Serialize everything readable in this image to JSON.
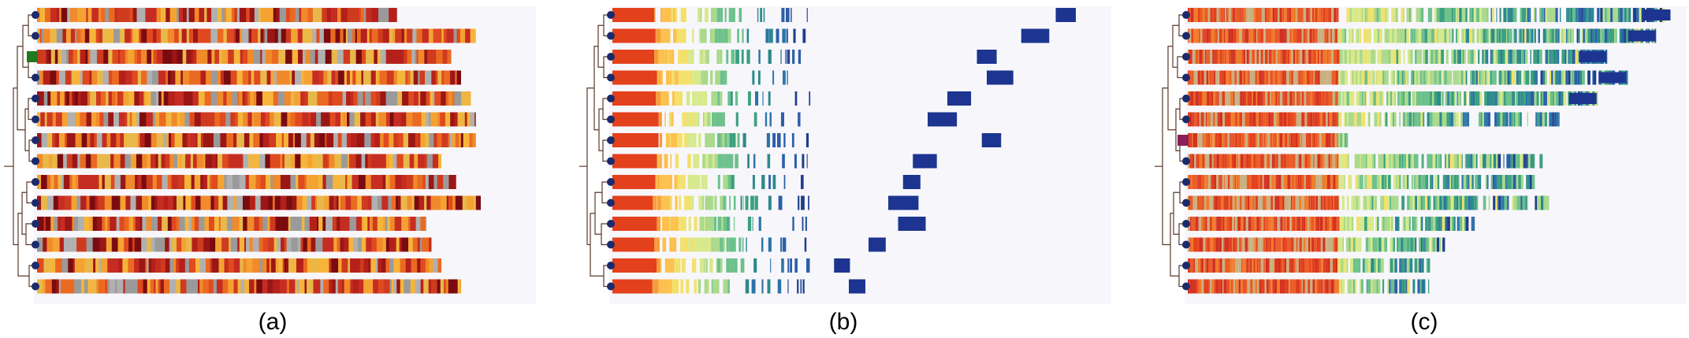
{
  "panels": [
    {
      "caption": "(a)",
      "highlight_color": "#1f7a1f",
      "highlight_row": 2,
      "row_lengths": [
        0.73,
        0.89,
        0.84,
        0.86,
        0.88,
        0.89,
        0.89,
        0.82,
        0.85,
        0.9,
        0.79,
        0.8,
        0.82,
        0.86
      ]
    },
    {
      "caption": "(b)",
      "highlight_color": "",
      "highlight_row": -1,
      "row_lengths": [
        0.4,
        0.4,
        0.4,
        0.4,
        0.4,
        0.4,
        0.4,
        0.4,
        0.4,
        0.4,
        0.4,
        0.4,
        0.4,
        0.4
      ],
      "tail_blocks": [
        0.9,
        0.83,
        0.74,
        0.76,
        0.68,
        0.64,
        0.75,
        0.61,
        0.59,
        0.56,
        0.58,
        0.52,
        0.45,
        0.48
      ]
    },
    {
      "caption": "(c)",
      "highlight_color": "#8a1f5a",
      "highlight_row": 6,
      "row_lengths": [
        0.98,
        0.95,
        0.85,
        0.89,
        0.83,
        0.76,
        0.33,
        0.72,
        0.7,
        0.73,
        0.58,
        0.52,
        0.49,
        0.49
      ]
    }
  ]
}
